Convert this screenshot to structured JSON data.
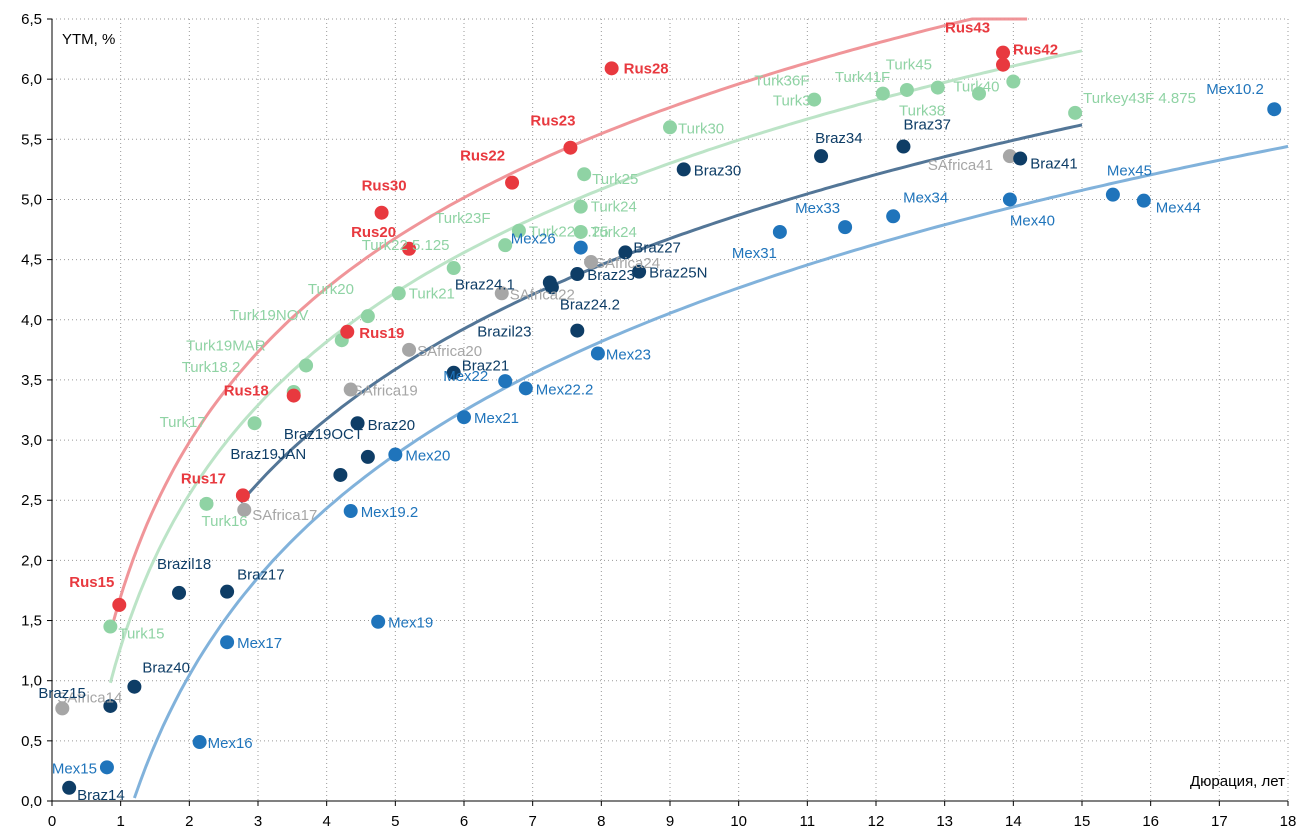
{
  "chart_data": {
    "type": "scatter",
    "title": "",
    "xlabel": "Дюрация, лет",
    "ylabel": "YTM, %",
    "xlim": [
      0,
      18
    ],
    "ylim": [
      0,
      6.5
    ],
    "x_ticks": [
      0,
      1,
      2,
      3,
      4,
      5,
      6,
      7,
      8,
      9,
      10,
      11,
      12,
      13,
      14,
      15,
      16,
      17,
      18
    ],
    "y_ticks": [
      "0,0",
      "0,5",
      "1,0",
      "1,5",
      "2,0",
      "2,5",
      "3,0",
      "3,5",
      "4,0",
      "4,5",
      "5,0",
      "5,5",
      "6,0",
      "6,5"
    ],
    "grid": "dotted vertical and horizontal",
    "legend": "none",
    "colors": {
      "russia": "#e8393f",
      "turkey": "#8fd3a4",
      "brazil": "#0e3d66",
      "mexico": "#1f74bb",
      "safrica": "#a6a6a6",
      "russia_trend": "#ef8f93",
      "turkey_trend": "#b8e3c4",
      "brazil_trend": "#4a6f91",
      "mexico_trend": "#7aaed9"
    },
    "series": [
      {
        "group": "russia",
        "points": [
          {
            "label": "Rus15",
            "x": 0.98,
            "y": 1.63
          },
          {
            "label": "Rus17",
            "x": 2.78,
            "y": 2.54
          },
          {
            "label": "Rus18",
            "x": 3.52,
            "y": 3.37
          },
          {
            "label": "Rus19",
            "x": 4.3,
            "y": 3.9
          },
          {
            "label": "Rus20",
            "x": 5.2,
            "y": 4.59
          },
          {
            "label": "Rus30",
            "x": 4.8,
            "y": 4.89
          },
          {
            "label": "Rus22",
            "x": 6.7,
            "y": 5.14
          },
          {
            "label": "Rus23",
            "x": 7.55,
            "y": 5.43
          },
          {
            "label": "Rus28",
            "x": 8.15,
            "y": 6.09
          },
          {
            "label": "Rus43",
            "x": 13.85,
            "y": 6.22
          },
          {
            "label": "Rus42",
            "x": 13.85,
            "y": 6.12
          }
        ]
      },
      {
        "group": "turkey",
        "points": [
          {
            "label": "Turk15",
            "x": 0.85,
            "y": 1.45
          },
          {
            "label": "Turk16",
            "x": 2.25,
            "y": 2.47
          },
          {
            "label": "Turk17",
            "x": 2.95,
            "y": 3.14
          },
          {
            "label": "Turk18.2",
            "x": 3.52,
            "y": 3.4
          },
          {
            "label": "Turk19MAR",
            "x": 3.7,
            "y": 3.62
          },
          {
            "label": "Turk19NOV",
            "x": 4.22,
            "y": 3.83
          },
          {
            "label": "Turk20",
            "x": 4.6,
            "y": 4.03
          },
          {
            "label": "Turk21",
            "x": 5.05,
            "y": 4.22
          },
          {
            "label": "Turk22 5.125",
            "x": 5.85,
            "y": 4.43
          },
          {
            "label": "Turk23F",
            "x": 6.6,
            "y": 4.62
          },
          {
            "label": "Turk22 6.25",
            "x": 6.8,
            "y": 4.74
          },
          {
            "label": "Turk24",
            "x": 7.7,
            "y": 4.73
          },
          {
            "label": "Turk24",
            "x": 7.7,
            "y": 4.94
          },
          {
            "label": "Turk25",
            "x": 7.75,
            "y": 5.21
          },
          {
            "label": "Turk30",
            "x": 9.0,
            "y": 5.6
          },
          {
            "label": "Turk36F",
            "x": 11.1,
            "y": 5.83
          },
          {
            "label": "Turk34",
            "x": 12.1,
            "y": 5.88
          },
          {
            "label": "Turk41F",
            "x": 12.45,
            "y": 5.91
          },
          {
            "label": "Turk45",
            "x": 12.9,
            "y": 5.93
          },
          {
            "label": "Turk38",
            "x": 13.5,
            "y": 5.88
          },
          {
            "label": "Turk40",
            "x": 14.0,
            "y": 5.98
          },
          {
            "label": "Turkey43F 4.875",
            "x": 14.9,
            "y": 5.72
          }
        ]
      },
      {
        "group": "brazil",
        "points": [
          {
            "label": "Braz14",
            "x": 0.25,
            "y": 0.11
          },
          {
            "label": "Braz15",
            "x": 0.85,
            "y": 0.79
          },
          {
            "label": "Braz40",
            "x": 1.2,
            "y": 0.95
          },
          {
            "label": "Brazil18",
            "x": 1.85,
            "y": 1.73
          },
          {
            "label": "Braz17",
            "x": 2.55,
            "y": 1.74
          },
          {
            "label": "Braz19JAN",
            "x": 4.2,
            "y": 2.71
          },
          {
            "label": "Braz19OCT",
            "x": 4.6,
            "y": 2.86
          },
          {
            "label": "Braz20",
            "x": 4.45,
            "y": 3.14
          },
          {
            "label": "Braz21",
            "x": 5.85,
            "y": 3.56
          },
          {
            "label": "Brazil23",
            "x": 7.65,
            "y": 3.91
          },
          {
            "label": "Braz24.1",
            "x": 7.25,
            "y": 4.31
          },
          {
            "label": "Braz24.2",
            "x": 7.28,
            "y": 4.27
          },
          {
            "label": "Braz23",
            "x": 7.65,
            "y": 4.38
          },
          {
            "label": "Braz25N",
            "x": 8.55,
            "y": 4.4
          },
          {
            "label": "Braz27",
            "x": 8.35,
            "y": 4.56
          },
          {
            "label": "Braz30",
            "x": 9.2,
            "y": 5.25
          },
          {
            "label": "Braz34",
            "x": 11.2,
            "y": 5.36
          },
          {
            "label": "Braz37",
            "x": 12.4,
            "y": 5.44
          },
          {
            "label": "Braz41",
            "x": 14.1,
            "y": 5.34
          }
        ]
      },
      {
        "group": "mexico",
        "points": [
          {
            "label": "Mex15",
            "x": 0.8,
            "y": 0.28
          },
          {
            "label": "Mex16",
            "x": 2.15,
            "y": 0.49
          },
          {
            "label": "Mex17",
            "x": 2.55,
            "y": 1.32
          },
          {
            "label": "Mex19",
            "x": 4.75,
            "y": 1.49
          },
          {
            "label": "Mex19.2",
            "x": 4.35,
            "y": 2.41
          },
          {
            "label": "Mex20",
            "x": 5.0,
            "y": 2.88
          },
          {
            "label": "Mex21",
            "x": 6.0,
            "y": 3.19
          },
          {
            "label": "Mex22",
            "x": 6.6,
            "y": 3.49
          },
          {
            "label": "Mex22.2",
            "x": 6.9,
            "y": 3.43
          },
          {
            "label": "Mex23",
            "x": 7.95,
            "y": 3.72
          },
          {
            "label": "Mex26",
            "x": 7.7,
            "y": 4.6
          },
          {
            "label": "Mex31",
            "x": 10.6,
            "y": 4.73
          },
          {
            "label": "Mex33",
            "x": 11.55,
            "y": 4.77
          },
          {
            "label": "Mex34",
            "x": 12.25,
            "y": 4.86
          },
          {
            "label": "Mex40",
            "x": 13.95,
            "y": 5.0
          },
          {
            "label": "Mex45",
            "x": 15.45,
            "y": 5.04
          },
          {
            "label": "Mex44",
            "x": 15.9,
            "y": 4.99
          },
          {
            "label": "Mex10.2",
            "x": 17.8,
            "y": 5.75
          }
        ]
      },
      {
        "group": "safrica",
        "points": [
          {
            "label": "SAfrica14",
            "x": 0.15,
            "y": 0.77
          },
          {
            "label": "SAfrica17",
            "x": 2.8,
            "y": 2.42
          },
          {
            "label": "SAfrica19",
            "x": 4.35,
            "y": 3.42
          },
          {
            "label": "SAfrica20",
            "x": 5.2,
            "y": 3.75
          },
          {
            "label": "SAfrica22",
            "x": 6.55,
            "y": 4.22
          },
          {
            "label": "SAfrica24",
            "x": 7.85,
            "y": 4.48
          },
          {
            "label": "SAfrica41",
            "x": 13.95,
            "y": 5.36
          }
        ]
      }
    ],
    "trendlines": [
      {
        "group": "russia",
        "type": "logarithmic",
        "a": 1.7,
        "b": 1.85,
        "xrange": [
          0.85,
          14.2
        ]
      },
      {
        "group": "turkey",
        "type": "logarithmic",
        "a": 1.28,
        "b": 1.83,
        "xrange": [
          0.85,
          15
        ]
      },
      {
        "group": "brazil",
        "type": "logarithmic",
        "a": 0.61,
        "b": 1.85,
        "xrange": [
          2.75,
          15
        ]
      },
      {
        "group": "mexico",
        "type": "logarithmic",
        "a": -0.34,
        "b": 2.0,
        "xrange": [
          1.2,
          18
        ]
      }
    ]
  }
}
